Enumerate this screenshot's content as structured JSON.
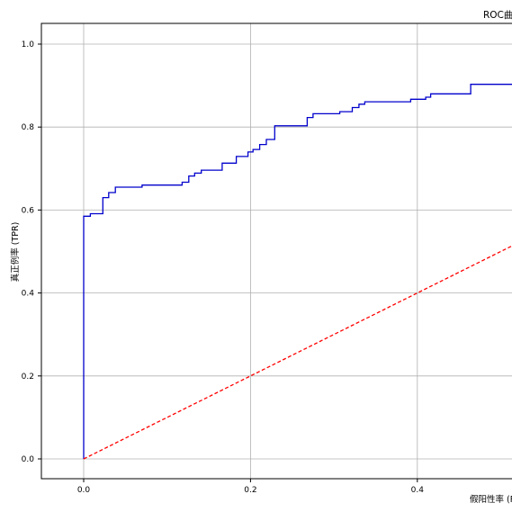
{
  "chart_data": {
    "type": "line",
    "title": "ROC曲线",
    "xlabel": "假阳性率 (FPR)",
    "ylabel": "真正例率 (TPR)",
    "xlim": [
      -0.05,
      1.05
    ],
    "ylim": [
      -0.05,
      1.05
    ],
    "x_ticks": [
      "0.0",
      "0.2",
      "0.4"
    ],
    "y_ticks": [
      "0.0",
      "0.2",
      "0.4",
      "0.6",
      "0.8",
      "1.0"
    ],
    "grid": true,
    "series": [
      {
        "color": "#0000cc",
        "style": "step",
        "x": [
          0.0,
          0.0,
          0.008,
          0.008,
          0.023,
          0.023,
          0.03,
          0.03,
          0.038,
          0.038,
          0.07,
          0.07,
          0.118,
          0.118,
          0.126,
          0.126,
          0.133,
          0.133,
          0.141,
          0.141,
          0.166,
          0.166,
          0.183,
          0.183,
          0.197,
          0.197,
          0.203,
          0.203,
          0.211,
          0.211,
          0.219,
          0.219,
          0.229,
          0.229,
          0.268,
          0.268,
          0.275,
          0.275,
          0.307,
          0.307,
          0.322,
          0.322,
          0.33,
          0.33,
          0.337,
          0.337,
          0.392,
          0.392,
          0.41,
          0.41,
          0.416,
          0.416,
          0.464,
          0.464,
          0.52
        ],
        "y": [
          0.0,
          0.585,
          0.585,
          0.591,
          0.591,
          0.63,
          0.63,
          0.642,
          0.642,
          0.655,
          0.655,
          0.66,
          0.66,
          0.667,
          0.667,
          0.682,
          0.682,
          0.689,
          0.689,
          0.696,
          0.696,
          0.713,
          0.713,
          0.729,
          0.729,
          0.74,
          0.74,
          0.746,
          0.746,
          0.758,
          0.758,
          0.77,
          0.77,
          0.803,
          0.803,
          0.823,
          0.823,
          0.832,
          0.832,
          0.837,
          0.837,
          0.847,
          0.847,
          0.855,
          0.855,
          0.861,
          0.861,
          0.867,
          0.867,
          0.872,
          0.872,
          0.88,
          0.88,
          0.903,
          0.903
        ]
      },
      {
        "color": "#ff0000",
        "style": "dashed",
        "x": [
          0.0,
          1.0
        ],
        "y": [
          0.0,
          1.0
        ]
      }
    ]
  }
}
